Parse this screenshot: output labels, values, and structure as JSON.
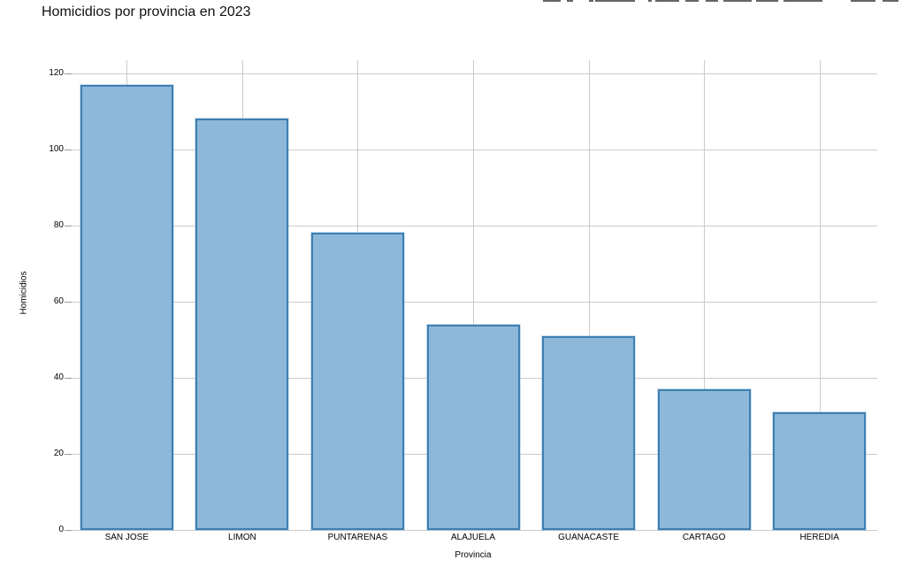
{
  "chart_data": {
    "type": "bar",
    "title": "Homicidios por provincia en 2023",
    "xlabel": "Provincia",
    "ylabel": "Homicidios",
    "categories": [
      "SAN JOSE",
      "LIMON",
      "PUNTARENAS",
      "ALAJUELA",
      "GUANACASTE",
      "CARTAGO",
      "HEREDIA"
    ],
    "values": [
      117,
      108,
      78,
      54,
      51,
      37,
      31
    ],
    "ylim": [
      0,
      120
    ],
    "yticks": [
      0,
      20,
      40,
      60,
      80,
      100,
      120
    ],
    "grid": true,
    "legend_position": "none",
    "colors": {
      "bar_fill": "#8DB8DA",
      "bar_border": "#3E7FB1",
      "gridline": "#CBCBCB",
      "tick": "#9A9A9A",
      "text": "#000000",
      "background": "#FFFFFF"
    }
  }
}
